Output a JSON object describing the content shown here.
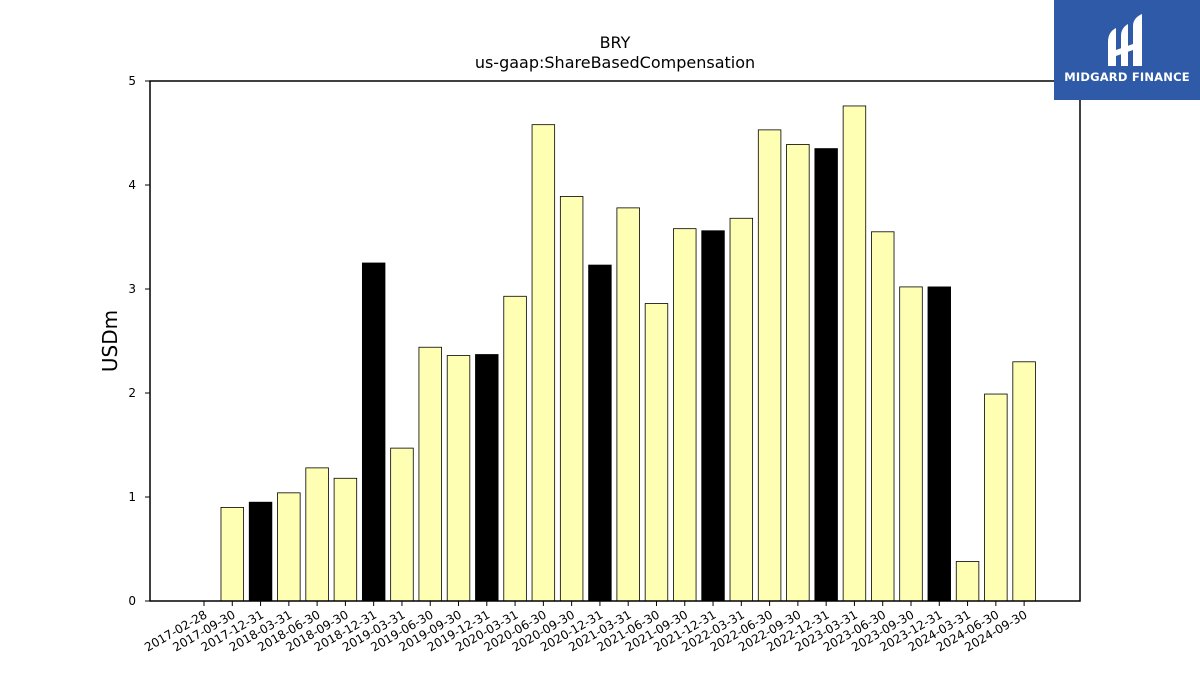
{
  "chart_data": {
    "type": "bar",
    "title": "BRY",
    "subtitle": "us-gaap:ShareBasedCompensation",
    "xlabel": "",
    "ylabel": "USDm",
    "ylim": [
      0,
      5
    ],
    "yticks": [
      "0",
      "1",
      "2",
      "3",
      "4",
      "5"
    ],
    "grid": false,
    "legend": "none",
    "categories": [
      "2017-02-28",
      "2017-09-30",
      "2017-12-31",
      "2018-03-31",
      "2018-06-30",
      "2018-09-30",
      "2018-12-31",
      "2019-03-31",
      "2019-06-30",
      "2019-09-30",
      "2019-12-31",
      "2020-03-31",
      "2020-06-30",
      "2020-09-30",
      "2020-12-31",
      "2021-03-31",
      "2021-06-30",
      "2021-09-30",
      "2021-12-31",
      "2022-03-31",
      "2022-06-30",
      "2022-09-30",
      "2022-12-31",
      "2023-03-31",
      "2023-06-30",
      "2023-09-30",
      "2023-12-31",
      "2024-03-31",
      "2024-06-30",
      "2024-09-30"
    ],
    "values": [
      0,
      0.9,
      0.95,
      1.04,
      1.28,
      1.18,
      3.25,
      1.47,
      2.44,
      2.36,
      2.37,
      2.93,
      4.58,
      3.89,
      3.23,
      3.78,
      2.86,
      3.58,
      3.56,
      3.68,
      4.53,
      4.39,
      4.35,
      4.76,
      3.55,
      3.02,
      3.02,
      0.38,
      1.99,
      2.3
    ],
    "highlight": [
      false,
      false,
      true,
      false,
      false,
      false,
      true,
      false,
      false,
      false,
      true,
      false,
      false,
      false,
      true,
      false,
      false,
      false,
      true,
      false,
      false,
      false,
      true,
      false,
      false,
      false,
      true,
      false,
      false,
      false
    ],
    "colors": {
      "bar": "#ffffb3",
      "highlight": "#000000",
      "edge": "#000000",
      "axis": "#000000"
    }
  },
  "logo": {
    "text": "MIDGARD FINANCE",
    "background": "#2f5aa8",
    "foreground": "#ffffff"
  }
}
